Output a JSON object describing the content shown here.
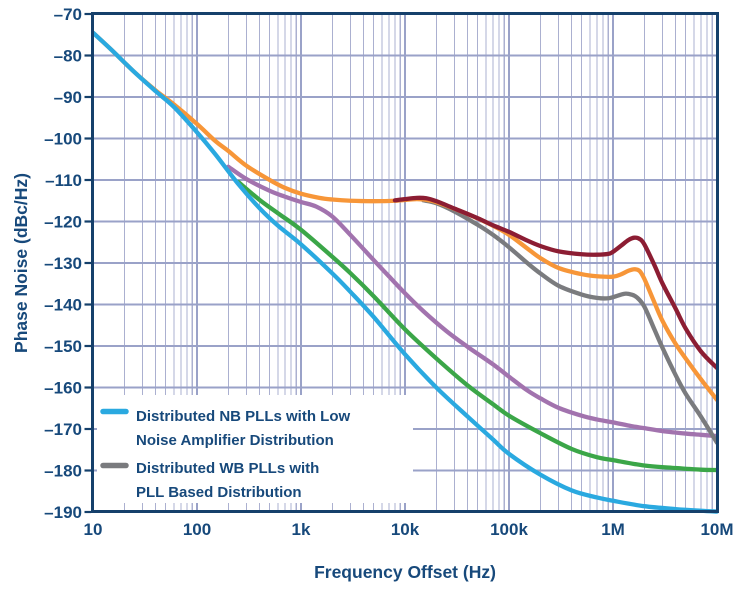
{
  "axes": {
    "x": {
      "label": "Frequency Offset (Hz)",
      "scale": "log",
      "min": 10,
      "max": 10000000,
      "ticks": [
        {
          "value": 10,
          "label": "10"
        },
        {
          "value": 100,
          "label": "100"
        },
        {
          "value": 1000,
          "label": "1k"
        },
        {
          "value": 10000,
          "label": "10k"
        },
        {
          "value": 100000,
          "label": "100k"
        },
        {
          "value": 1000000,
          "label": "1M"
        },
        {
          "value": 10000000,
          "label": "10M"
        }
      ]
    },
    "y": {
      "label": "Phase Noise (dBc/Hz)",
      "scale": "linear",
      "min": -190,
      "max": -70,
      "ticks": [
        {
          "value": -70,
          "label": "–70"
        },
        {
          "value": -80,
          "label": "–80"
        },
        {
          "value": -90,
          "label": "–90"
        },
        {
          "value": -100,
          "label": "–100"
        },
        {
          "value": -110,
          "label": "–110"
        },
        {
          "value": -120,
          "label": "–120"
        },
        {
          "value": -130,
          "label": "–130"
        },
        {
          "value": -140,
          "label": "–140"
        },
        {
          "value": -150,
          "label": "–150"
        },
        {
          "value": -160,
          "label": "–160"
        },
        {
          "value": -170,
          "label": "–170"
        },
        {
          "value": -180,
          "label": "–180"
        },
        {
          "value": -190,
          "label": "–190"
        }
      ]
    }
  },
  "legend": {
    "entries": [
      {
        "series": "cyan",
        "color": "#2AA9E0",
        "lines": [
          "Distributed NB PLLs with Low",
          "Noise Amplifier Distribution"
        ]
      },
      {
        "series": "gray",
        "color": "#7A7B7E",
        "lines": [
          "Distributed WB PLLs with",
          "PLL Based Distribution"
        ]
      }
    ]
  },
  "colors": {
    "frame": "#15406B",
    "text": "#17497B",
    "grid_minor": "#ABB0D0",
    "grid_major": "#9AA2C8",
    "background": "#ffffff"
  },
  "chart_data": {
    "type": "line",
    "title": "",
    "xlabel": "Frequency Offset (Hz)",
    "ylabel": "Phase Noise (dBc/Hz)",
    "xscale": "log",
    "xlim": [
      10,
      10000000
    ],
    "ylim": [
      -190,
      -70
    ],
    "grid": true,
    "legend_position": "inside bottom-left",
    "series": [
      {
        "id": "purple",
        "name": "",
        "color": "#A273AE",
        "points": [
          [
            200,
            -106.8
          ],
          [
            300,
            -109.8
          ],
          [
            500,
            -112.6
          ],
          [
            700,
            -114
          ],
          [
            1000,
            -115.3
          ],
          [
            1400,
            -116.4
          ],
          [
            2000,
            -118.8
          ],
          [
            3000,
            -123.3
          ],
          [
            5000,
            -129.3
          ],
          [
            7000,
            -133.2
          ],
          [
            10000,
            -137.3
          ],
          [
            15000,
            -141.6
          ],
          [
            25000,
            -146.4
          ],
          [
            40000,
            -150.2
          ],
          [
            70000,
            -154.4
          ],
          [
            100000,
            -157.4
          ],
          [
            150000,
            -160.7
          ],
          [
            200000,
            -162.6
          ],
          [
            300000,
            -164.9
          ],
          [
            500000,
            -166.8
          ],
          [
            700000,
            -167.7
          ],
          [
            1000000,
            -168.4
          ],
          [
            1500000,
            -169.3
          ],
          [
            2000000,
            -169.8
          ],
          [
            3000000,
            -170.5
          ],
          [
            5000000,
            -171.1
          ],
          [
            7000000,
            -171.4
          ],
          [
            10000000,
            -171.7
          ]
        ]
      },
      {
        "id": "green",
        "name": "",
        "color": "#3BA648",
        "points": [
          [
            250,
            -110.5
          ],
          [
            400,
            -114.8
          ],
          [
            600,
            -118
          ],
          [
            1000,
            -122
          ],
          [
            2000,
            -128.5
          ],
          [
            3000,
            -132.5
          ],
          [
            5000,
            -138
          ],
          [
            10000,
            -146
          ],
          [
            20000,
            -153
          ],
          [
            40000,
            -159.5
          ],
          [
            70000,
            -164
          ],
          [
            100000,
            -166.8
          ],
          [
            200000,
            -171
          ],
          [
            400000,
            -174.8
          ],
          [
            700000,
            -176.8
          ],
          [
            1000000,
            -177.5
          ],
          [
            2000000,
            -178.8
          ],
          [
            4000000,
            -179.4
          ],
          [
            7000000,
            -179.8
          ],
          [
            10000000,
            -179.9
          ]
        ]
      },
      {
        "id": "gray",
        "name": "Distributed WB PLLs with PLL Based Distribution",
        "color": "#7A7B7E",
        "points": [
          [
            15000,
            -114.9
          ],
          [
            20000,
            -115.6
          ],
          [
            30000,
            -117.6
          ],
          [
            50000,
            -120.8
          ],
          [
            70000,
            -123.2
          ],
          [
            100000,
            -126.2
          ],
          [
            150000,
            -130
          ],
          [
            200000,
            -132.5
          ],
          [
            300000,
            -135.5
          ],
          [
            500000,
            -137.6
          ],
          [
            700000,
            -138.4
          ],
          [
            900000,
            -138.5
          ],
          [
            1100000,
            -137.9
          ],
          [
            1300000,
            -137.4
          ],
          [
            1500000,
            -137.6
          ],
          [
            1700000,
            -138.3
          ],
          [
            2000000,
            -140.5
          ],
          [
            2500000,
            -146
          ],
          [
            3000000,
            -150.5
          ],
          [
            4000000,
            -157
          ],
          [
            5000000,
            -161.5
          ],
          [
            7000000,
            -167
          ],
          [
            10000000,
            -173.3
          ]
        ]
      },
      {
        "id": "orange",
        "name": "",
        "color": "#F79638",
        "points": [
          [
            10,
            -74.5
          ],
          [
            15,
            -78.6
          ],
          [
            25,
            -84
          ],
          [
            40,
            -88.4
          ],
          [
            60,
            -91.8
          ],
          [
            100,
            -96.5
          ],
          [
            150,
            -100.6
          ],
          [
            200,
            -103
          ],
          [
            300,
            -106.6
          ],
          [
            500,
            -110
          ],
          [
            700,
            -111.9
          ],
          [
            1000,
            -113.3
          ],
          [
            1500,
            -114.3
          ],
          [
            2000,
            -114.7
          ],
          [
            3000,
            -115
          ],
          [
            5000,
            -115.1
          ],
          [
            8000,
            -115
          ],
          [
            13000,
            -114.6
          ],
          [
            18000,
            -115
          ],
          [
            25000,
            -116.2
          ],
          [
            40000,
            -118.2
          ],
          [
            70000,
            -121
          ],
          [
            100000,
            -123.2
          ],
          [
            150000,
            -126.5
          ],
          [
            200000,
            -128.8
          ],
          [
            300000,
            -131.2
          ],
          [
            500000,
            -132.7
          ],
          [
            700000,
            -133.2
          ],
          [
            1000000,
            -133.3
          ],
          [
            1200000,
            -132.7
          ],
          [
            1400000,
            -131.9
          ],
          [
            1600000,
            -131.5
          ],
          [
            1800000,
            -131.9
          ],
          [
            2000000,
            -133.8
          ],
          [
            2500000,
            -139.5
          ],
          [
            3000000,
            -144
          ],
          [
            4000000,
            -149.5
          ],
          [
            5000000,
            -153
          ],
          [
            7000000,
            -158
          ],
          [
            10000000,
            -163
          ]
        ]
      },
      {
        "id": "maroon",
        "name": "",
        "color": "#8C1D33",
        "points": [
          [
            8000,
            -114.9
          ],
          [
            10000,
            -114.6
          ],
          [
            13000,
            -114.3
          ],
          [
            16000,
            -114.4
          ],
          [
            20000,
            -115.1
          ],
          [
            30000,
            -116.9
          ],
          [
            50000,
            -119.2
          ],
          [
            70000,
            -120.9
          ],
          [
            100000,
            -122.5
          ],
          [
            150000,
            -124.6
          ],
          [
            200000,
            -125.9
          ],
          [
            300000,
            -127.2
          ],
          [
            500000,
            -127.9
          ],
          [
            700000,
            -128
          ],
          [
            900000,
            -127.8
          ],
          [
            1000000,
            -127.3
          ],
          [
            1200000,
            -125.8
          ],
          [
            1400000,
            -124.5
          ],
          [
            1600000,
            -123.9
          ],
          [
            1800000,
            -124.2
          ],
          [
            2000000,
            -125.5
          ],
          [
            2500000,
            -130.5
          ],
          [
            3000000,
            -135
          ],
          [
            4000000,
            -141
          ],
          [
            5000000,
            -145.8
          ],
          [
            7000000,
            -151.3
          ],
          [
            10000000,
            -155.3
          ]
        ]
      },
      {
        "id": "cyan",
        "name": "Distributed NB PLLs with Low Noise Amplifier Distribution",
        "color": "#2AA9E0",
        "points": [
          [
            10,
            -74.5
          ],
          [
            15,
            -78.6
          ],
          [
            25,
            -84
          ],
          [
            40,
            -88.6
          ],
          [
            60,
            -92.4
          ],
          [
            100,
            -98.5
          ],
          [
            150,
            -103.8
          ],
          [
            250,
            -111
          ],
          [
            400,
            -116.8
          ],
          [
            600,
            -121
          ],
          [
            1000,
            -125.5
          ],
          [
            2000,
            -132.5
          ],
          [
            3000,
            -137
          ],
          [
            5000,
            -143
          ],
          [
            10000,
            -152
          ],
          [
            20000,
            -160
          ],
          [
            40000,
            -167
          ],
          [
            70000,
            -172.5
          ],
          [
            100000,
            -176
          ],
          [
            200000,
            -181
          ],
          [
            400000,
            -184.8
          ],
          [
            700000,
            -186.5
          ],
          [
            1000000,
            -187.3
          ],
          [
            2000000,
            -188.6
          ],
          [
            4000000,
            -189.3
          ],
          [
            7000000,
            -189.7
          ],
          [
            10000000,
            -189.9
          ]
        ]
      }
    ]
  }
}
